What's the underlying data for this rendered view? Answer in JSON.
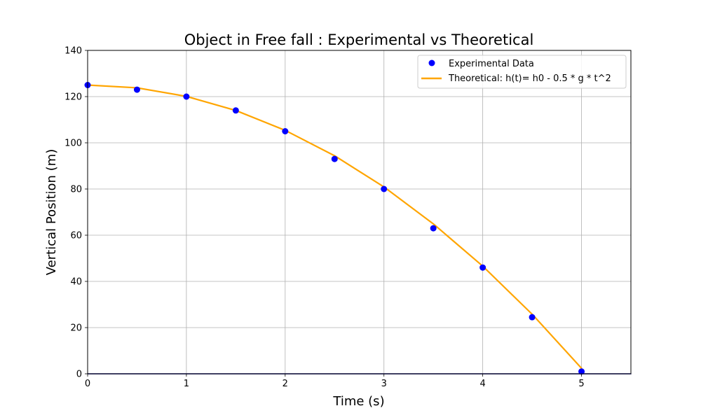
{
  "chart_data": {
    "type": "scatter",
    "title": "Object in Free fall : Experimental vs Theoretical",
    "xlabel": "Time (s)",
    "ylabel": "Vertical Position (m)",
    "xlim": [
      0,
      5.5
    ],
    "ylim": [
      0,
      140
    ],
    "xticks": [
      0,
      1,
      2,
      3,
      4,
      5
    ],
    "yticks": [
      0,
      20,
      40,
      60,
      80,
      100,
      120,
      140
    ],
    "grid": true,
    "legend_position": "top-right",
    "series": [
      {
        "name": "Experimental Data",
        "kind": "scatter",
        "color": "#0000ff",
        "x": [
          0,
          0.5,
          1,
          1.5,
          2,
          2.5,
          3,
          3.5,
          4,
          4.5,
          5
        ],
        "y": [
          125,
          123,
          120,
          114,
          105,
          93,
          80,
          63,
          46,
          24.5,
          1
        ]
      },
      {
        "name": "Theoretical: h(t)= h0 - 0.5 * g * t^2",
        "kind": "line",
        "color": "#ffa500",
        "x": [
          0,
          0.5,
          1,
          1.5,
          2,
          2.5,
          3,
          3.5,
          4,
          4.5,
          5
        ],
        "y": [
          125,
          123.8,
          120.1,
          114.0,
          105.4,
          94.4,
          80.9,
          64.9,
          46.6,
          25.8,
          2.4
        ]
      },
      {
        "name": "",
        "kind": "baseline",
        "color": "#00008b",
        "x": [
          0,
          5.5
        ],
        "y": [
          0,
          0
        ]
      }
    ]
  }
}
